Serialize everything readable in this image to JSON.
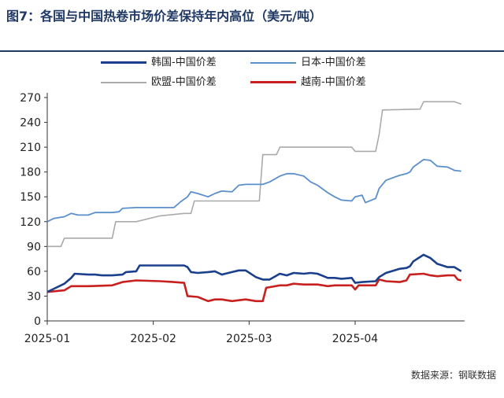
{
  "title": "图7：各国与中国热卷市场价差保持年内高位（美元/吨）",
  "source": "数据来源：钢联数据",
  "colors": {
    "korea": "#1a3f8c",
    "japan": "#5b8fcc",
    "eu": "#aaaaaa",
    "vietnam": "#c8201f",
    "title": "#1f3864",
    "axis": "#333333"
  },
  "chart_data": {
    "type": "line",
    "ylim": [
      0,
      270
    ],
    "yticks": [
      "0",
      "30",
      "60",
      "90",
      "120",
      "150",
      "180",
      "210",
      "240",
      "270"
    ],
    "xtick_labels": [
      "2025-01",
      "2025-02",
      "2025-03",
      "2025-04"
    ],
    "xlim": [
      "2025-01-01",
      "2025-05-03"
    ],
    "xticks": [
      "2025-01-01",
      "2025-02-01",
      "2025-03-01",
      "2025-04-01"
    ],
    "grid": false,
    "legend_position": "top",
    "series": [
      {
        "name": "韩国-中国价差",
        "key": "korea",
        "points": [
          [
            "2025-01-01",
            35
          ],
          [
            "2025-01-03",
            39
          ],
          [
            "2025-01-06",
            45
          ],
          [
            "2025-01-08",
            52
          ],
          [
            "2025-01-09",
            57
          ],
          [
            "2025-01-13",
            56
          ],
          [
            "2025-01-15",
            56
          ],
          [
            "2025-01-17",
            55
          ],
          [
            "2025-01-20",
            55
          ],
          [
            "2025-01-23",
            56
          ],
          [
            "2025-01-24",
            59
          ],
          [
            "2025-01-27",
            60
          ],
          [
            "2025-01-28",
            67
          ],
          [
            "2025-02-03",
            67
          ],
          [
            "2025-02-07",
            67
          ],
          [
            "2025-02-10",
            67
          ],
          [
            "2025-02-11",
            65
          ],
          [
            "2025-02-12",
            59
          ],
          [
            "2025-02-14",
            58
          ],
          [
            "2025-02-17",
            59
          ],
          [
            "2025-02-19",
            60
          ],
          [
            "2025-02-20",
            58
          ],
          [
            "2025-02-21",
            56
          ],
          [
            "2025-02-24",
            59
          ],
          [
            "2025-02-26",
            61
          ],
          [
            "2025-02-28",
            61
          ],
          [
            "2025-03-03",
            53
          ],
          [
            "2025-03-05",
            50
          ],
          [
            "2025-03-07",
            50
          ],
          [
            "2025-03-10",
            57
          ],
          [
            "2025-03-12",
            55
          ],
          [
            "2025-03-14",
            58
          ],
          [
            "2025-03-17",
            57
          ],
          [
            "2025-03-19",
            58
          ],
          [
            "2025-03-21",
            57
          ],
          [
            "2025-03-24",
            52
          ],
          [
            "2025-03-26",
            52
          ],
          [
            "2025-03-28",
            51
          ],
          [
            "2025-03-31",
            52
          ],
          [
            "2025-04-01",
            46
          ],
          [
            "2025-04-03",
            47
          ],
          [
            "2025-04-07",
            48
          ],
          [
            "2025-04-08",
            53
          ],
          [
            "2025-04-10",
            58
          ],
          [
            "2025-04-14",
            63
          ],
          [
            "2025-04-16",
            64
          ],
          [
            "2025-04-17",
            66
          ],
          [
            "2025-04-18",
            72
          ],
          [
            "2025-04-21",
            80
          ],
          [
            "2025-04-23",
            76
          ],
          [
            "2025-04-25",
            69
          ],
          [
            "2025-04-28",
            65
          ],
          [
            "2025-04-30",
            65
          ],
          [
            "2025-05-02",
            60
          ]
        ]
      },
      {
        "name": "日本-中国价差",
        "key": "japan",
        "points": [
          [
            "2025-01-01",
            120
          ],
          [
            "2025-01-03",
            124
          ],
          [
            "2025-01-06",
            126
          ],
          [
            "2025-01-08",
            130
          ],
          [
            "2025-01-10",
            128
          ],
          [
            "2025-01-13",
            128
          ],
          [
            "2025-01-15",
            131
          ],
          [
            "2025-01-20",
            131
          ],
          [
            "2025-01-22",
            132
          ],
          [
            "2025-01-23",
            136
          ],
          [
            "2025-01-27",
            137
          ],
          [
            "2025-02-03",
            137
          ],
          [
            "2025-02-07",
            137
          ],
          [
            "2025-02-09",
            144
          ],
          [
            "2025-02-11",
            150
          ],
          [
            "2025-02-12",
            156
          ],
          [
            "2025-02-14",
            154
          ],
          [
            "2025-02-17",
            150
          ],
          [
            "2025-02-19",
            154
          ],
          [
            "2025-02-21",
            157
          ],
          [
            "2025-02-24",
            156
          ],
          [
            "2025-02-26",
            164
          ],
          [
            "2025-02-28",
            165
          ],
          [
            "2025-03-03",
            165
          ],
          [
            "2025-03-05",
            165
          ],
          [
            "2025-03-07",
            168
          ],
          [
            "2025-03-10",
            175
          ],
          [
            "2025-03-12",
            178
          ],
          [
            "2025-03-14",
            178
          ],
          [
            "2025-03-17",
            175
          ],
          [
            "2025-03-19",
            168
          ],
          [
            "2025-03-21",
            164
          ],
          [
            "2025-03-24",
            155
          ],
          [
            "2025-03-26",
            150
          ],
          [
            "2025-03-28",
            146
          ],
          [
            "2025-03-31",
            145
          ],
          [
            "2025-04-01",
            150
          ],
          [
            "2025-04-03",
            152
          ],
          [
            "2025-04-04",
            143
          ],
          [
            "2025-04-07",
            148
          ],
          [
            "2025-04-08",
            160
          ],
          [
            "2025-04-10",
            170
          ],
          [
            "2025-04-14",
            176
          ],
          [
            "2025-04-16",
            178
          ],
          [
            "2025-04-17",
            180
          ],
          [
            "2025-04-18",
            186
          ],
          [
            "2025-04-21",
            195
          ],
          [
            "2025-04-23",
            194
          ],
          [
            "2025-04-25",
            187
          ],
          [
            "2025-04-28",
            186
          ],
          [
            "2025-04-30",
            182
          ],
          [
            "2025-05-02",
            181
          ]
        ]
      },
      {
        "name": "欧盟-中国价差",
        "key": "eu",
        "points": [
          [
            "2025-01-01",
            90
          ],
          [
            "2025-01-05",
            90
          ],
          [
            "2025-01-06",
            100
          ],
          [
            "2025-01-20",
            100
          ],
          [
            "2025-01-21",
            120
          ],
          [
            "2025-01-27",
            120
          ],
          [
            "2025-02-03",
            127
          ],
          [
            "2025-02-10",
            130
          ],
          [
            "2025-02-12",
            130
          ],
          [
            "2025-02-13",
            145
          ],
          [
            "2025-02-27",
            145
          ],
          [
            "2025-02-28",
            145
          ],
          [
            "2025-03-01",
            145
          ],
          [
            "2025-03-04",
            145
          ],
          [
            "2025-03-05",
            201
          ],
          [
            "2025-03-09",
            201
          ],
          [
            "2025-03-10",
            210
          ],
          [
            "2025-03-31",
            210
          ],
          [
            "2025-04-01",
            205
          ],
          [
            "2025-04-07",
            205
          ],
          [
            "2025-04-08",
            225
          ],
          [
            "2025-04-09",
            255
          ],
          [
            "2025-04-20",
            256
          ],
          [
            "2025-04-21",
            265
          ],
          [
            "2025-04-30",
            265
          ],
          [
            "2025-05-02",
            262
          ]
        ]
      },
      {
        "name": "越南-中国价差",
        "key": "vietnam",
        "points": [
          [
            "2025-01-01",
            35
          ],
          [
            "2025-01-06",
            37
          ],
          [
            "2025-01-08",
            42
          ],
          [
            "2025-01-13",
            42
          ],
          [
            "2025-01-20",
            43
          ],
          [
            "2025-01-23",
            47
          ],
          [
            "2025-01-27",
            49
          ],
          [
            "2025-02-03",
            48
          ],
          [
            "2025-02-07",
            47
          ],
          [
            "2025-02-10",
            46
          ],
          [
            "2025-02-11",
            30
          ],
          [
            "2025-02-14",
            29
          ],
          [
            "2025-02-17",
            24
          ],
          [
            "2025-02-19",
            26
          ],
          [
            "2025-02-21",
            26
          ],
          [
            "2025-02-24",
            24
          ],
          [
            "2025-02-26",
            25
          ],
          [
            "2025-02-28",
            26
          ],
          [
            "2025-03-03",
            24
          ],
          [
            "2025-03-05",
            24
          ],
          [
            "2025-03-06",
            40
          ],
          [
            "2025-03-10",
            43
          ],
          [
            "2025-03-12",
            43
          ],
          [
            "2025-03-14",
            45
          ],
          [
            "2025-03-17",
            44
          ],
          [
            "2025-03-19",
            44
          ],
          [
            "2025-03-21",
            44
          ],
          [
            "2025-03-24",
            42
          ],
          [
            "2025-03-26",
            43
          ],
          [
            "2025-03-28",
            43
          ],
          [
            "2025-03-31",
            43
          ],
          [
            "2025-04-01",
            38
          ],
          [
            "2025-04-02",
            43
          ],
          [
            "2025-04-07",
            43
          ],
          [
            "2025-04-08",
            50
          ],
          [
            "2025-04-10",
            48
          ],
          [
            "2025-04-14",
            47
          ],
          [
            "2025-04-16",
            49
          ],
          [
            "2025-04-17",
            56
          ],
          [
            "2025-04-21",
            57
          ],
          [
            "2025-04-23",
            55
          ],
          [
            "2025-04-25",
            54
          ],
          [
            "2025-04-28",
            55
          ],
          [
            "2025-04-30",
            55
          ],
          [
            "2025-05-01",
            50
          ],
          [
            "2025-05-02",
            49
          ]
        ]
      }
    ]
  }
}
